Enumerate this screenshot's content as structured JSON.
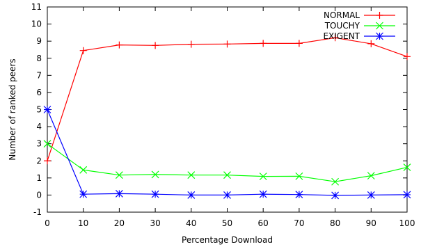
{
  "chart_data": {
    "type": "line",
    "title": "",
    "xlabel": "Percentage Download",
    "ylabel": "Number of ranked peers",
    "x": [
      0,
      10,
      20,
      30,
      40,
      50,
      60,
      70,
      80,
      90,
      100
    ],
    "xlim": [
      0,
      100
    ],
    "ylim": [
      -1,
      11
    ],
    "xticks": [
      0,
      10,
      20,
      30,
      40,
      50,
      60,
      70,
      80,
      90,
      100
    ],
    "yticks": [
      -1,
      0,
      1,
      2,
      3,
      4,
      5,
      6,
      7,
      8,
      9,
      10,
      11
    ],
    "grid": false,
    "legend_position": "top-right",
    "series": [
      {
        "name": "NORMAL",
        "color": "#ff0000",
        "marker": "plus",
        "values": [
          2.0,
          8.45,
          8.78,
          8.75,
          8.82,
          8.83,
          8.87,
          8.87,
          9.2,
          8.85,
          8.1
        ]
      },
      {
        "name": "TOUCHY",
        "color": "#00ff00",
        "marker": "x",
        "values": [
          3.0,
          1.47,
          1.17,
          1.2,
          1.17,
          1.17,
          1.09,
          1.1,
          0.78,
          1.13,
          1.62
        ]
      },
      {
        "name": "EXIGENT",
        "color": "#0000ff",
        "marker": "asterisk",
        "values": [
          5.0,
          0.05,
          0.08,
          0.05,
          0.0,
          0.0,
          0.05,
          0.03,
          -0.02,
          0.0,
          0.02
        ]
      }
    ]
  }
}
